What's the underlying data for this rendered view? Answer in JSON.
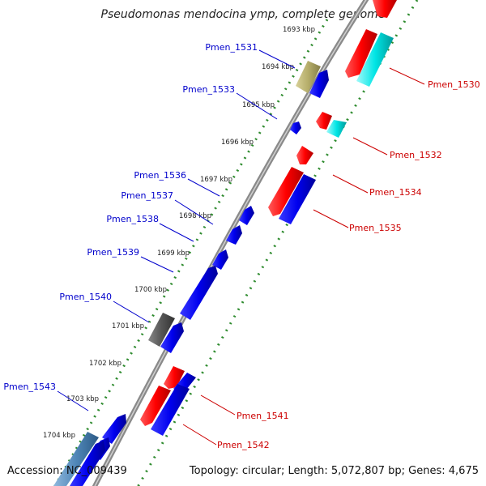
{
  "title": "Pseudomonas mendocina ymp, complete genome",
  "footer": {
    "accession": "Accession: NC_009439",
    "summary": "Topology: circular; Length: 5,072,807 bp; Genes: 4,675"
  },
  "colors": {
    "backbone": "#8a8a8a",
    "ruler": "#2e8b2e",
    "gene_blue": "#0000ee",
    "gene_red": "#ff0000",
    "gene_cyan": "#00e5e5",
    "gene_olive": "#b5ad6a",
    "gene_gray": "#555555",
    "gene_steelblue": "#4f86b8",
    "label_blue": "#0000cc",
    "label_red": "#cc0000"
  },
  "ruler_labels": [
    "1693 kbp",
    "1694 kbp",
    "1695 kbp",
    "1696 kbp",
    "1697 kbp",
    "1698 kbp",
    "1699 kbp",
    "1700 kbp",
    "1701 kbp",
    "1702 kbp",
    "1703 kbp",
    "1704 kbp"
  ],
  "gene_labels_left": [
    "Pmen_1531",
    "Pmen_1533",
    "Pmen_1536",
    "Pmen_1537",
    "Pmen_1538",
    "Pmen_1539",
    "Pmen_1540",
    "Pmen_1543"
  ],
  "gene_labels_right": [
    "Pmen_1530",
    "Pmen_1532",
    "Pmen_1534",
    "Pmen_1535",
    "Pmen_1541",
    "Pmen_1542"
  ]
}
